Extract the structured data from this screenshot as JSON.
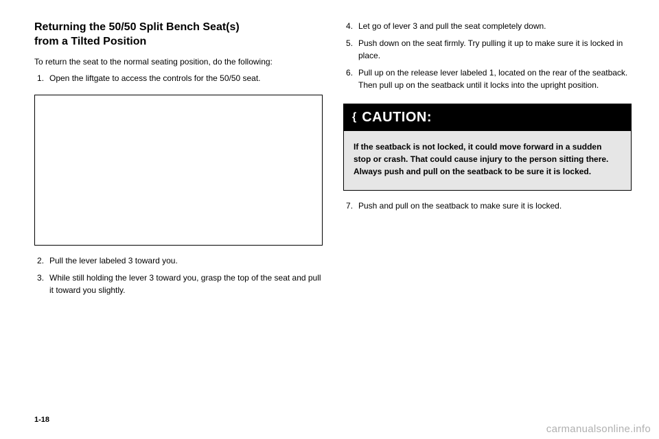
{
  "left": {
    "heading_l1": "Returning the 50/50 Split Bench Seat(s)",
    "heading_l2": "from a Tilted Position",
    "intro": "To return the seat to the normal seating position, do the following:",
    "steps": [
      "Open the liftgate to access the controls for the 50/50 seat.",
      "Pull the lever labeled 3 toward you.",
      "While still holding the lever 3 toward you, grasp the top of the seat and pull it toward you slightly."
    ]
  },
  "right": {
    "steps": [
      "Let go of lever 3 and pull the seat completely down.",
      "Push down on the seat firmly. Try pulling it up to make sure it is locked in place.",
      "Pull up on the release lever labeled 1, located on the rear of the seatback. Then pull up on the seatback until it locks into the upright position."
    ],
    "caution_label": "CAUTION:",
    "caution_body": "If the seatback is not locked, it could move forward in a sudden stop or crash. That could cause injury to the person sitting there. Always push and pull on the seatback to be sure it is locked.",
    "step7": "Push and pull on the seatback to make sure it is locked."
  },
  "page_number": "1-18",
  "watermark": "carmanualsonline.info"
}
